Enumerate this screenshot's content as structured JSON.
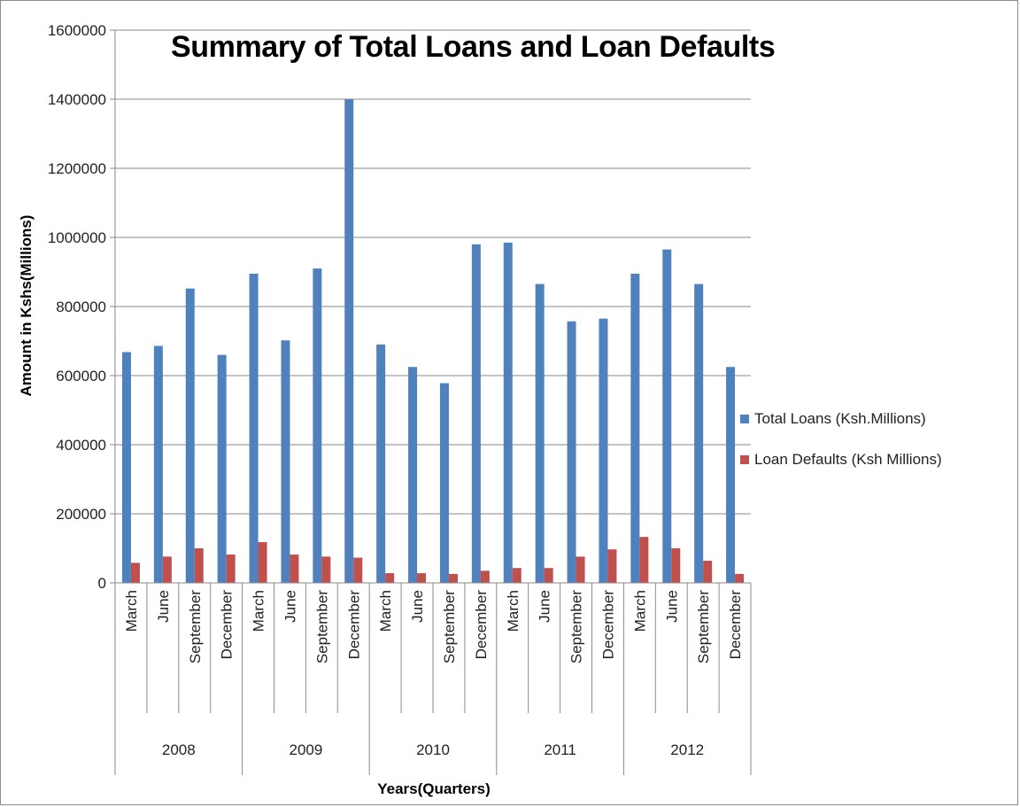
{
  "chart_data": {
    "type": "bar",
    "title": "Summary of Total Loans and Loan Defaults",
    "xlabel": "Years(Quarters)",
    "ylabel": "Amount in Kshs(Millions)",
    "ylim": [
      0,
      1600000
    ],
    "yticks": [
      "0",
      "200000",
      "400000",
      "600000",
      "800000",
      "1000000",
      "1200000",
      "1400000",
      "1600000"
    ],
    "grid": true,
    "legend_position": "right",
    "years": [
      "2008",
      "2009",
      "2010",
      "2011",
      "2012"
    ],
    "categories": [
      "March",
      "June",
      "September",
      "December",
      "March",
      "June",
      "September",
      "December",
      "March",
      "June",
      "September",
      "December",
      "March",
      "June",
      "September",
      "December",
      "March",
      "June",
      "September",
      "December"
    ],
    "series": [
      {
        "name": "Total Loans (Ksh.Millions)",
        "color": "#4f81bd",
        "values": [
          668000,
          686000,
          852000,
          660000,
          895000,
          702000,
          910000,
          1400000,
          690000,
          625000,
          578000,
          980000,
          985000,
          865000,
          757000,
          765000,
          895000,
          965000,
          865000,
          625000
        ]
      },
      {
        "name": "Loan Defaults (Ksh Millions)",
        "color": "#c0504d",
        "values": [
          58000,
          76000,
          100000,
          82000,
          118000,
          82000,
          76000,
          73000,
          28000,
          28000,
          26000,
          35000,
          43000,
          43000,
          76000,
          97000,
          133000,
          100000,
          64000,
          26000
        ]
      }
    ]
  }
}
